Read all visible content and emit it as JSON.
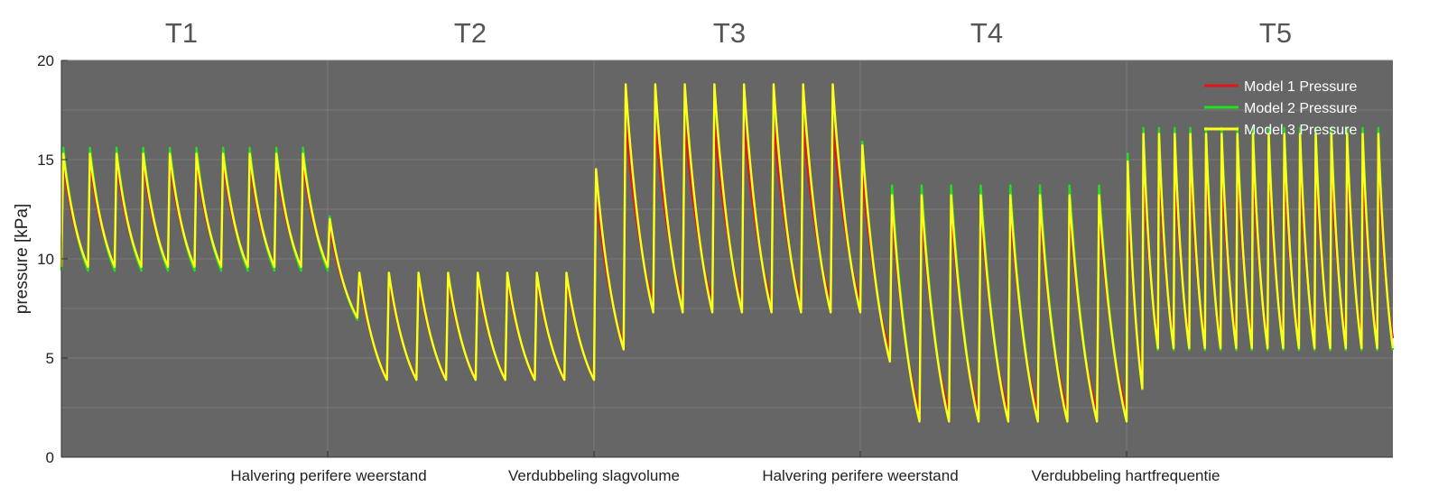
{
  "chart_data": {
    "type": "line",
    "title": "",
    "ylabel": "pressure [kPa]",
    "xlabel": "",
    "ylim": [
      0,
      20
    ],
    "yticks": [
      0,
      5,
      10,
      15,
      20
    ],
    "grid": true,
    "legend_position": "top-right",
    "sections": [
      "T1",
      "T2",
      "T3",
      "T4",
      "T5"
    ],
    "transitions": [
      "Halvering perifere weerstand",
      "Verdubbeling slagvolume",
      "Halvering perifere weerstand",
      "Verdubbeling hartfrequentie"
    ],
    "series": [
      {
        "name": "Model 1 Pressure",
        "color": "#e8141a",
        "phases": [
          {
            "beats": 10,
            "peak": 14.9,
            "trough": 9.6
          },
          {
            "beats": 9,
            "peak": 9.0,
            "trough": 4.0
          },
          {
            "beats": 9,
            "peak": 16.9,
            "trough": 7.9
          },
          {
            "beats": 9,
            "peak": 12.5,
            "trough": 2.3
          },
          {
            "beats": 17,
            "peak": 14.8,
            "trough": 6.0
          }
        ]
      },
      {
        "name": "Model 2 Pressure",
        "color": "#22e01e",
        "phases": [
          {
            "beats": 10,
            "peak": 15.6,
            "trough": 9.4
          },
          {
            "beats": 9,
            "peak": 9.3,
            "trough": 3.9
          },
          {
            "beats": 9,
            "peak": 18.6,
            "trough": 7.4
          },
          {
            "beats": 9,
            "peak": 13.7,
            "trough": 1.8
          },
          {
            "beats": 17,
            "peak": 16.6,
            "trough": 5.4
          }
        ]
      },
      {
        "name": "Model 3 Pressure",
        "color": "#ffff1a",
        "phases": [
          {
            "beats": 10,
            "peak": 15.3,
            "trough": 9.6
          },
          {
            "beats": 9,
            "peak": 9.3,
            "trough": 3.9
          },
          {
            "beats": 9,
            "peak": 18.8,
            "trough": 7.3
          },
          {
            "beats": 9,
            "peak": 13.2,
            "trough": 1.8
          },
          {
            "beats": 17,
            "peak": 16.3,
            "trough": 5.5
          }
        ]
      }
    ]
  },
  "colors": {
    "plot_background": "#666666",
    "grid": "#7a7a7a",
    "section_label": "#555555"
  }
}
